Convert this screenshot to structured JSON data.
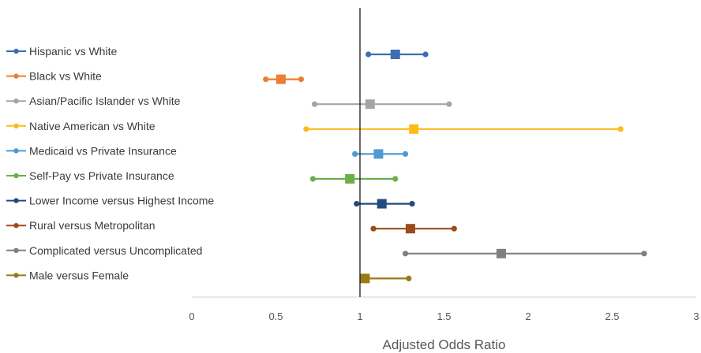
{
  "chart_data": {
    "type": "forest",
    "xlabel": "Adjusted Odds Ratio",
    "xlim": [
      0,
      3
    ],
    "xticks": [
      "0",
      "0.5",
      "1",
      "1.5",
      "2",
      "2.5",
      "3"
    ],
    "xtick_values": [
      0,
      0.5,
      1,
      1.5,
      2,
      2.5,
      3
    ],
    "reference_line": 1,
    "series": [
      {
        "name": "Hispanic vs White",
        "or": 1.21,
        "ci": [
          1.05,
          1.39
        ],
        "color": "#3d6db3"
      },
      {
        "name": "Black vs White",
        "or": 0.53,
        "ci": [
          0.44,
          0.65
        ],
        "color": "#ed7d31"
      },
      {
        "name": "Asian/Pacific Islander vs White",
        "or": 1.06,
        "ci": [
          0.73,
          1.53
        ],
        "color": "#a5a5a5"
      },
      {
        "name": "Native American vs White",
        "or": 1.32,
        "ci": [
          0.68,
          2.55
        ],
        "color": "#fbbc1c"
      },
      {
        "name": "Medicaid vs Private Insurance",
        "or": 1.11,
        "ci": [
          0.97,
          1.27
        ],
        "color": "#4e9bd2"
      },
      {
        "name": "Self-Pay vs Private Insurance",
        "or": 0.94,
        "ci": [
          0.72,
          1.21
        ],
        "color": "#6aaf48"
      },
      {
        "name": "Lower Income versus Highest Income",
        "or": 1.13,
        "ci": [
          0.98,
          1.31
        ],
        "color": "#234a80"
      },
      {
        "name": "Rural versus Metropolitan",
        "or": 1.3,
        "ci": [
          1.08,
          1.56
        ],
        "color": "#9c4b1a"
      },
      {
        "name": "Complicated versus Uncomplicated",
        "or": 1.84,
        "ci": [
          1.27,
          2.69
        ],
        "color": "#7f7f7f"
      },
      {
        "name": "Male versus Female",
        "or": 1.03,
        "ci": [
          1.03,
          1.29
        ],
        "color": "#9a7b13"
      }
    ]
  }
}
